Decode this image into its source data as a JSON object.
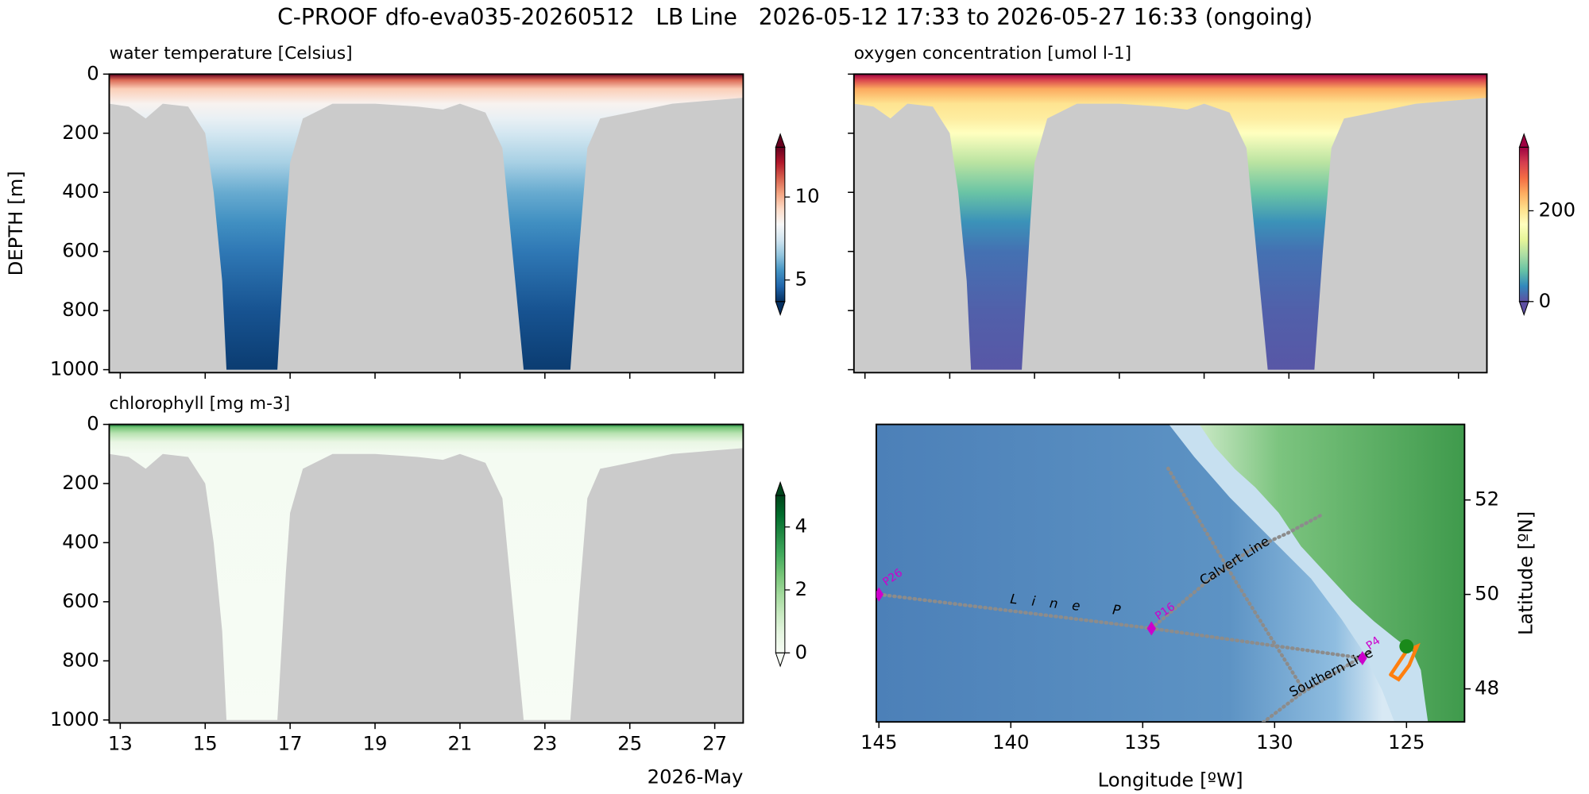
{
  "title": "C-PROOF dfo-eva035-20260512   LB Line   2026-05-12 17:33 to 2026-05-27 16:33 (ongoing)",
  "chart_data": [
    {
      "type": "section",
      "title": "water temperature [Celsius]",
      "ylabel": "DEPTH [m]",
      "x": [
        12.74,
        13.2,
        13.6,
        14.0,
        14.6,
        15.0,
        15.2,
        15.4,
        15.5,
        16.7,
        16.9,
        17.0,
        17.3,
        18.0,
        19.0,
        20.0,
        20.6,
        21.0,
        21.6,
        22.0,
        22.3,
        22.5,
        23.6,
        23.8,
        24.0,
        24.3,
        25.0,
        26.0,
        27.67
      ],
      "max_depth": [
        100,
        110,
        150,
        100,
        110,
        200,
        400,
        700,
        1000,
        1000,
        500,
        300,
        150,
        100,
        100,
        110,
        120,
        100,
        130,
        250,
        700,
        1000,
        1000,
        600,
        250,
        150,
        130,
        100,
        80
      ],
      "profile": {
        "depth": [
          0,
          20,
          50,
          100,
          150,
          200,
          300,
          400,
          500,
          600,
          800,
          1000
        ],
        "values": [
          13,
          11,
          9.5,
          8.5,
          8,
          7.5,
          6.8,
          6,
          5.5,
          5,
          4.3,
          3.9
        ]
      },
      "xlim": [
        12.74,
        27.67
      ],
      "ylim": [
        1010,
        0
      ],
      "xticks": [
        13,
        15,
        17,
        19,
        21,
        23,
        25,
        27
      ],
      "yticks": [
        0,
        200,
        400,
        600,
        800,
        1000
      ],
      "show_xticklabels": false,
      "show_yticklabels": true,
      "clim": [
        3.7,
        13
      ],
      "cticks": [
        5,
        10
      ],
      "extend": "both",
      "background": "#cbcbcb",
      "cmap": [
        "#053061",
        "#2166ac",
        "#4393c3",
        "#92c5de",
        "#d1e5f0",
        "#f7f7f7",
        "#fddbc7",
        "#f4a582",
        "#d6604d",
        "#b2182b",
        "#67001f"
      ]
    },
    {
      "type": "section",
      "title": "oxygen concentration [umol l-1]",
      "x": [
        12.74,
        13.2,
        13.6,
        14.0,
        14.6,
        15.0,
        15.2,
        15.4,
        15.5,
        16.7,
        16.9,
        17.0,
        17.3,
        18.0,
        19.0,
        20.0,
        20.6,
        21.0,
        21.6,
        22.0,
        22.3,
        22.5,
        23.6,
        23.8,
        24.0,
        24.3,
        25.0,
        26.0,
        27.67
      ],
      "max_depth": [
        100,
        110,
        150,
        100,
        110,
        200,
        400,
        700,
        1000,
        1000,
        500,
        300,
        150,
        100,
        100,
        110,
        120,
        100,
        130,
        250,
        700,
        1000,
        1000,
        600,
        250,
        150,
        130,
        100,
        80
      ],
      "profile": {
        "depth": [
          0,
          20,
          50,
          100,
          150,
          200,
          300,
          400,
          500,
          600,
          800,
          1000
        ],
        "values": [
          340,
          300,
          240,
          200,
          190,
          170,
          110,
          70,
          40,
          20,
          10,
          5
        ]
      },
      "xlim": [
        12.74,
        27.67
      ],
      "ylim": [
        1010,
        0
      ],
      "xticks": [
        13,
        15,
        17,
        19,
        21,
        23,
        25,
        27
      ],
      "yticks": [
        0,
        200,
        400,
        600,
        800,
        1000
      ],
      "show_xticklabels": false,
      "show_yticklabels": false,
      "clim": [
        0,
        340
      ],
      "cticks": [
        0,
        200
      ],
      "extend": "both",
      "background": "#cbcbcb",
      "cmap": [
        "#5e4fa2",
        "#3288bd",
        "#66c2a5",
        "#abdda4",
        "#e6f598",
        "#ffffbf",
        "#fee08b",
        "#fdae61",
        "#f46d43",
        "#d53e4f",
        "#9e0142"
      ]
    },
    {
      "type": "section",
      "title": "chlorophyll [mg m-3]",
      "xlabel": "2026-May",
      "x": [
        12.74,
        13.2,
        13.6,
        14.0,
        14.6,
        15.0,
        15.2,
        15.4,
        15.5,
        16.7,
        16.9,
        17.0,
        17.3,
        18.0,
        19.0,
        20.0,
        20.6,
        21.0,
        21.6,
        22.0,
        22.3,
        22.5,
        23.6,
        23.8,
        24.0,
        24.3,
        25.0,
        26.0,
        27.67
      ],
      "max_depth": [
        100,
        110,
        150,
        100,
        110,
        200,
        400,
        700,
        1000,
        1000,
        500,
        300,
        150,
        100,
        100,
        110,
        120,
        100,
        130,
        250,
        700,
        1000,
        1000,
        600,
        250,
        150,
        130,
        100,
        80
      ],
      "profile": {
        "depth": [
          0,
          10,
          30,
          60,
          100,
          1000
        ],
        "values": [
          4,
          2.5,
          1.5,
          0.5,
          0.1,
          0
        ]
      },
      "xlim": [
        12.74,
        27.67
      ],
      "ylim": [
        1010,
        0
      ],
      "xticks": [
        13,
        15,
        17,
        19,
        21,
        23,
        25,
        27
      ],
      "yticks": [
        0,
        200,
        400,
        600,
        800,
        1000
      ],
      "show_xticklabels": true,
      "show_yticklabels": true,
      "clim": [
        0,
        5
      ],
      "cticks": [
        0,
        2,
        4
      ],
      "extend": "both",
      "background": "#cbcbcb",
      "cmap": [
        "#f7fcf5",
        "#e5f5e0",
        "#c7e9c0",
        "#a1d99b",
        "#74c476",
        "#41ab5d",
        "#238b45",
        "#006d2c",
        "#00441b"
      ]
    },
    {
      "type": "map",
      "xlabel": "Longitude [ºW]",
      "ylabel": "Latitude [ºN]",
      "xlim": [
        145.1,
        122.8
      ],
      "ylim": [
        47.3,
        53.6
      ],
      "xticks": [
        145,
        140,
        135,
        130,
        125
      ],
      "yticks": [
        48,
        50,
        52
      ],
      "tracks": [
        {
          "lon": [
            145,
            134.67,
            126.67
          ],
          "lat": [
            50,
            49.28,
            48.65
          ],
          "color": "#8c8c8c"
        },
        {
          "lon": [
            134.67,
            132.5,
            130.96,
            129.5,
            128.27
          ],
          "lat": [
            49.28,
            50.3,
            50.93,
            51.3,
            51.67
          ],
          "color": "#8c8c8c"
        },
        {
          "lon": [
            131.35,
            129,
            126.35
          ],
          "lat": [
            46.9,
            47.9,
            48.8
          ],
          "color": "#8c8c8c"
        },
        {
          "lon": [
            134.04,
            131.5,
            128.85
          ],
          "lat": [
            52.67,
            50.3,
            47.93
          ],
          "color": "#8c8c8c"
        },
        {
          "lon": [
            125.6,
            125.0,
            124.6,
            124.9,
            125.3,
            125.6
          ],
          "lat": [
            48.3,
            48.8,
            48.9,
            48.5,
            48.2,
            48.3
          ],
          "color": "#ff7f0e"
        }
      ],
      "stations": {
        "names": [
          "P26",
          "P16",
          "P4"
        ],
        "lon": [
          145,
          134.67,
          126.67
        ],
        "lat": [
          50,
          49.28,
          48.65
        ],
        "color": "#cc00cc"
      },
      "position": {
        "lon": [
          125.0
        ],
        "lat": [
          48.9
        ],
        "color": "#1a8a1a"
      },
      "labels": [
        "Line P",
        "Calvert Line",
        "Southern Line"
      ]
    }
  ]
}
